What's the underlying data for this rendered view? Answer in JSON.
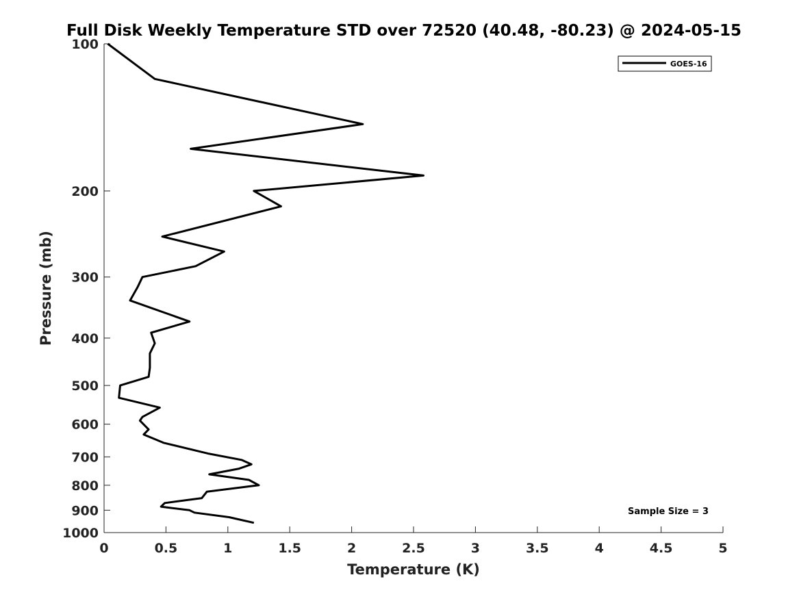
{
  "chart_data": {
    "type": "line",
    "title": "Full Disk Weekly Temperature STD over 72520 (40.48, -80.23) @ 2024-05-15",
    "xlabel": "Temperature (K)",
    "ylabel": "Pressure (mb)",
    "xlim": [
      0,
      5
    ],
    "ylim": [
      100,
      1000
    ],
    "y_scale": "log",
    "y_reversed": true,
    "x_ticks": [
      "0",
      "0.5",
      "1",
      "1.5",
      "2",
      "2.5",
      "3",
      "3.5",
      "4",
      "4.5",
      "5"
    ],
    "y_ticks": [
      "100",
      "200",
      "300",
      "400",
      "500",
      "600",
      "700",
      "800",
      "900",
      "1000"
    ],
    "grid": false,
    "legend_position": "top-right",
    "series": [
      {
        "name": "GOES-16",
        "color": "#000000",
        "points": [
          [
            0.03,
            100
          ],
          [
            0.41,
            118
          ],
          [
            2.09,
            146
          ],
          [
            0.7,
            164
          ],
          [
            2.58,
            186
          ],
          [
            1.21,
            200
          ],
          [
            1.43,
            215
          ],
          [
            0.47,
            248
          ],
          [
            0.97,
            266
          ],
          [
            0.74,
            285
          ],
          [
            0.31,
            300
          ],
          [
            0.27,
            315
          ],
          [
            0.21,
            335
          ],
          [
            0.69,
            370
          ],
          [
            0.38,
            390
          ],
          [
            0.41,
            410
          ],
          [
            0.37,
            430
          ],
          [
            0.37,
            460
          ],
          [
            0.36,
            480
          ],
          [
            0.13,
            500
          ],
          [
            0.12,
            530
          ],
          [
            0.45,
            555
          ],
          [
            0.31,
            580
          ],
          [
            0.29,
            590
          ],
          [
            0.36,
            615
          ],
          [
            0.32,
            630
          ],
          [
            0.48,
            655
          ],
          [
            0.85,
            690
          ],
          [
            1.11,
            710
          ],
          [
            1.19,
            725
          ],
          [
            1.09,
            740
          ],
          [
            0.85,
            760
          ],
          [
            1.17,
            780
          ],
          [
            1.25,
            800
          ],
          [
            0.83,
            825
          ],
          [
            0.79,
            850
          ],
          [
            0.49,
            870
          ],
          [
            0.46,
            885
          ],
          [
            0.69,
            900
          ],
          [
            0.73,
            910
          ],
          [
            1.01,
            930
          ],
          [
            1.21,
            955
          ]
        ]
      }
    ],
    "annotation": "Sample Size = 3"
  }
}
